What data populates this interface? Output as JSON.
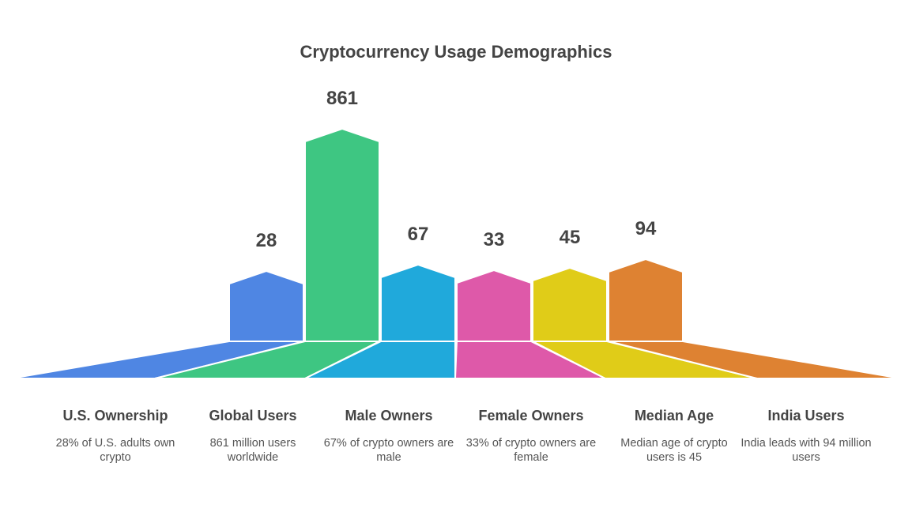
{
  "title": "Cryptocurrency Usage Demographics",
  "items": [
    {
      "value": "28",
      "label": "U.S. Ownership",
      "description": "28% of U.S. adults own crypto",
      "color": "#4f86e3"
    },
    {
      "value": "861",
      "label": "Global Users",
      "description": "861 million users worldwide",
      "color": "#3ec682"
    },
    {
      "value": "67",
      "label": "Male Owners",
      "description": "67% of crypto owners are male",
      "color": "#20a9db"
    },
    {
      "value": "33",
      "label": "Female Owners",
      "description": "33% of crypto owners are female",
      "color": "#de59a9"
    },
    {
      "value": "45",
      "label": "Median Age",
      "description": "Median age of crypto users is 45",
      "color": "#e0cc18"
    },
    {
      "value": "94",
      "label": "India Users",
      "description": "India leads with 94 million users",
      "color": "#de8232"
    }
  ]
}
